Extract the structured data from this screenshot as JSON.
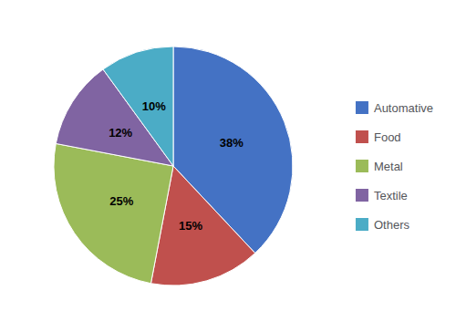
{
  "chart_data": {
    "type": "pie",
    "categories": [
      "Automative",
      "Food",
      "Metal",
      "Textile",
      "Others"
    ],
    "values": [
      38,
      15,
      25,
      12,
      10
    ],
    "value_labels": [
      "38%",
      "15%",
      "25%",
      "12%",
      "10%"
    ],
    "colors": [
      "#4472C4",
      "#C0504D",
      "#9BBB59",
      "#8064A2",
      "#4BACC6"
    ],
    "data_labels": true,
    "legend": "right"
  }
}
